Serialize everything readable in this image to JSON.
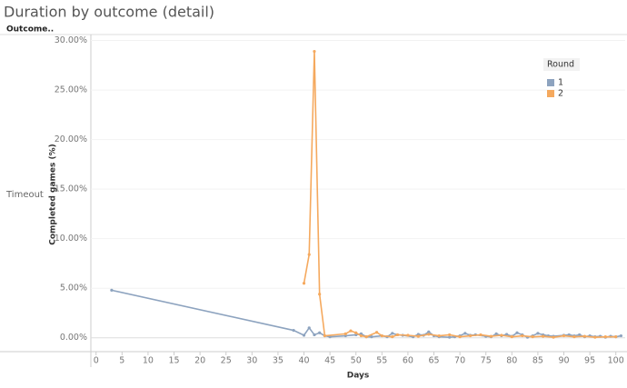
{
  "chart_data": {
    "type": "line",
    "title": "Duration by outcome (detail)",
    "row_header": "Outcome..",
    "row_label": "Timeout",
    "x_label": "Days",
    "y_label": "Completed games (%)",
    "legend_title": "Round",
    "legend_position": "upper-right",
    "grid": true,
    "xlim": [
      -1,
      101.8
    ],
    "xticks": [
      0,
      5,
      10,
      15,
      20,
      25,
      30,
      35,
      40,
      45,
      50,
      55,
      60,
      65,
      70,
      75,
      80,
      85,
      90,
      95,
      100
    ],
    "ylim": [
      -1.4,
      30.6
    ],
    "yticks": [
      {
        "value": 0,
        "label": "0.00%"
      },
      {
        "value": 5,
        "label": "5.00%"
      },
      {
        "value": 10,
        "label": "10.00%"
      },
      {
        "value": 15,
        "label": "15.00%"
      },
      {
        "value": 20,
        "label": "20.00%"
      },
      {
        "value": 25,
        "label": "25.00%"
      },
      {
        "value": 30,
        "label": "30.00%"
      }
    ],
    "series": [
      {
        "name": "1",
        "color": "#8da3bf",
        "x": [
          3,
          38,
          40,
          41,
          42,
          43,
          44,
          45,
          48,
          50,
          51,
          52,
          53,
          55,
          56,
          57,
          58,
          59,
          61,
          62,
          63,
          64,
          65,
          66,
          68,
          69,
          70,
          71,
          72,
          73,
          75,
          76,
          77,
          78,
          79,
          80,
          81,
          82,
          83,
          84,
          85,
          86,
          87,
          88,
          90,
          91,
          92,
          93,
          94,
          95,
          96,
          97,
          98,
          99,
          100,
          101
        ],
        "values": [
          4.8,
          0.75,
          0.25,
          1.0,
          0.3,
          0.5,
          0.2,
          0.1,
          0.2,
          0.3,
          0.4,
          0.1,
          0.1,
          0.2,
          0.1,
          0.45,
          0.3,
          0.25,
          0.1,
          0.35,
          0.25,
          0.6,
          0.2,
          0.1,
          0.05,
          0.1,
          0.2,
          0.45,
          0.25,
          0.3,
          0.15,
          0.1,
          0.4,
          0.2,
          0.35,
          0.15,
          0.5,
          0.3,
          0.05,
          0.2,
          0.45,
          0.3,
          0.2,
          0.15,
          0.25,
          0.3,
          0.2,
          0.3,
          0.1,
          0.2,
          0.1,
          0.15,
          0.05,
          0.15,
          0.1,
          0.2
        ]
      },
      {
        "name": "2",
        "color": "#f5a95e",
        "x": [
          40,
          41,
          42,
          43,
          44,
          48,
          49,
          50,
          51,
          52,
          54,
          55,
          57,
          58,
          60,
          62,
          64,
          66,
          68,
          70,
          72,
          74,
          76,
          78,
          80,
          82,
          84,
          86,
          88,
          90,
          92,
          94,
          96,
          98,
          100
        ],
        "values": [
          5.5,
          8.4,
          28.9,
          4.4,
          0.2,
          0.4,
          0.7,
          0.5,
          0.2,
          0.1,
          0.55,
          0.2,
          0.1,
          0.3,
          0.25,
          0.15,
          0.35,
          0.2,
          0.3,
          0.1,
          0.2,
          0.3,
          0.15,
          0.25,
          0.1,
          0.2,
          0.1,
          0.15,
          0.05,
          0.2,
          0.1,
          0.15,
          0.05,
          0.1,
          0.1
        ]
      }
    ]
  }
}
